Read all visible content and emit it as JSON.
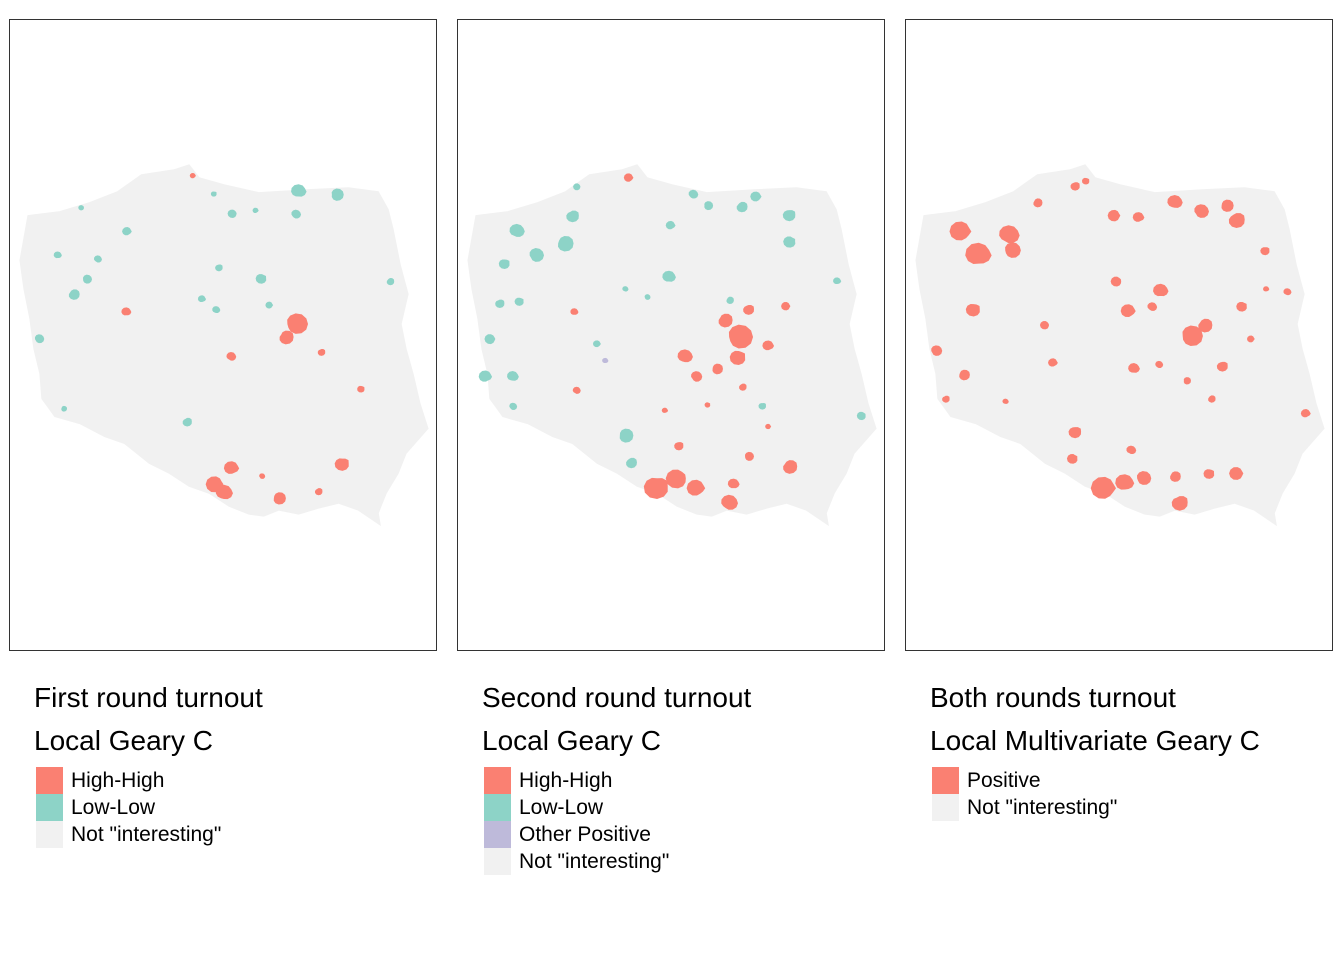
{
  "colors": {
    "high_high": "#fa8072",
    "low_low": "#8dd3c7",
    "other_positive": "#bebada",
    "not_interesting": "#f1f1f1",
    "positive": "#fa8072",
    "panel_border": "#333333"
  },
  "maps": [
    {
      "title_line1": "First round turnout",
      "title_line2": "Local Geary C",
      "legend": [
        {
          "label": "High-High",
          "color": "#fa8072"
        },
        {
          "label": "Low-Low",
          "color": "#8dd3c7"
        },
        {
          "label": "Not \"interesting\"",
          "color": "#f1f1f1"
        }
      ]
    },
    {
      "title_line1": "Second round turnout",
      "title_line2": "Local Geary C",
      "legend": [
        {
          "label": "High-High",
          "color": "#fa8072"
        },
        {
          "label": "Low-Low",
          "color": "#8dd3c7"
        },
        {
          "label": "Other Positive",
          "color": "#bebada"
        },
        {
          "label": "Not \"interesting\"",
          "color": "#f1f1f1"
        }
      ]
    },
    {
      "title_line1": "Both rounds turnout",
      "title_line2": "Local Multivariate Geary C",
      "legend": [
        {
          "label": "Positive",
          "color": "#fa8072"
        },
        {
          "label": "Not \"interesting\"",
          "color": "#f1f1f1"
        }
      ]
    }
  ]
}
